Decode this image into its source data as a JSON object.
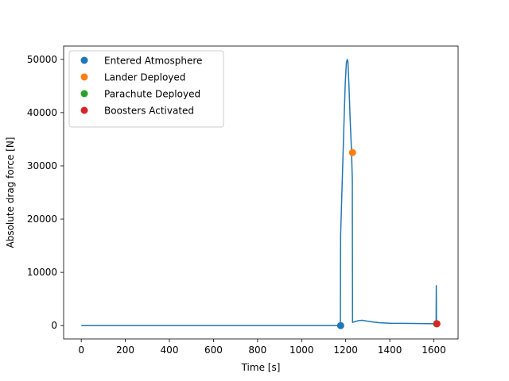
{
  "chart_data": {
    "type": "line",
    "title": "",
    "xlabel": "Time [s]",
    "ylabel": "Absolute drag force [N]",
    "xlim": [
      -80,
      1710
    ],
    "ylim": [
      -2500,
      52500
    ],
    "xticks": [
      0,
      200,
      400,
      600,
      800,
      1000,
      1200,
      1400,
      1600
    ],
    "yticks": [
      0,
      10000,
      20000,
      30000,
      40000,
      50000
    ],
    "grid": false,
    "legend_position": "upper left",
    "series": [
      {
        "color": "#1f77b4",
        "points": [
          [
            0,
            0
          ],
          [
            1176,
            0
          ],
          [
            1177,
            17000
          ],
          [
            1185,
            28000
          ],
          [
            1192,
            38000
          ],
          [
            1198,
            45500
          ],
          [
            1203,
            49300
          ],
          [
            1207,
            50000
          ],
          [
            1210,
            49500
          ],
          [
            1215,
            45000
          ],
          [
            1220,
            39000
          ],
          [
            1226,
            33000
          ],
          [
            1230,
            27500
          ],
          [
            1231,
            600
          ],
          [
            1245,
            800
          ],
          [
            1260,
            950
          ],
          [
            1275,
            1000
          ],
          [
            1290,
            900
          ],
          [
            1320,
            700
          ],
          [
            1350,
            550
          ],
          [
            1400,
            450
          ],
          [
            1500,
            400
          ],
          [
            1610,
            350
          ],
          [
            1611,
            7500
          ],
          [
            1612,
            350
          ],
          [
            1615,
            350
          ]
        ]
      }
    ],
    "events": [
      {
        "name": "Entered Atmosphere",
        "color": "#1f77b4",
        "x": 1177,
        "y": 0
      },
      {
        "name": "Lander Deployed",
        "color": "#ff7f0e",
        "x": 1231,
        "y": 32500
      },
      {
        "name": "Parachute Deployed",
        "color": "#2ca02c",
        "x": 1612,
        "y": 350
      },
      {
        "name": "Boosters Activated",
        "color": "#d62728",
        "x": 1614,
        "y": 350
      }
    ]
  }
}
